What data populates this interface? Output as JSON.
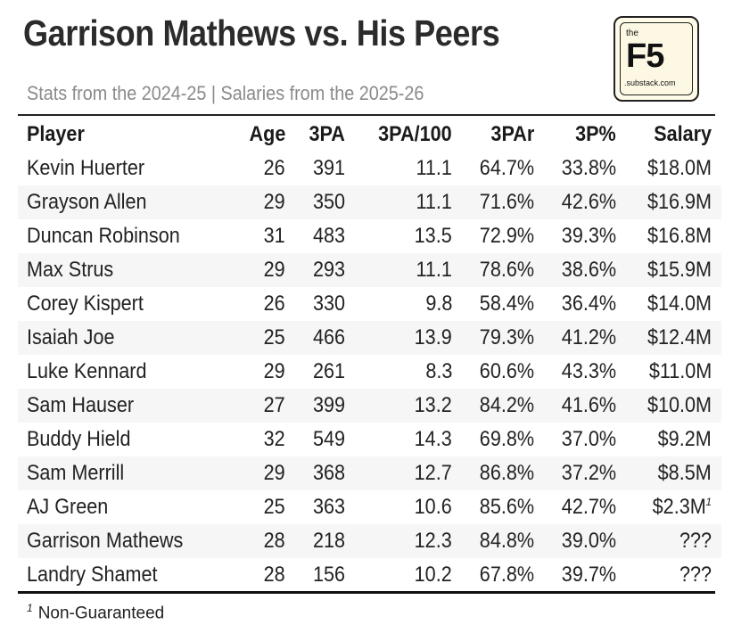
{
  "header": {
    "title": "Garrison Mathews vs. His Peers",
    "subtitle": "Stats from the 2024-25 | Salaries from the 2025-26"
  },
  "logo": {
    "the": "the",
    "name": "F5",
    "domain": ".substack.com"
  },
  "table": {
    "columns": [
      "Player",
      "Age",
      "3PA",
      "3PA/100",
      "3PAr",
      "3P%",
      "Salary"
    ],
    "rows": [
      {
        "player": "Kevin Huerter",
        "age": "26",
        "tpa": "391",
        "tpa100": "11.1",
        "tpar": "64.7%",
        "tpp": "33.8%",
        "salary": "$18.0M",
        "note": ""
      },
      {
        "player": "Grayson Allen",
        "age": "29",
        "tpa": "350",
        "tpa100": "11.1",
        "tpar": "71.6%",
        "tpp": "42.6%",
        "salary": "$16.9M",
        "note": ""
      },
      {
        "player": "Duncan Robinson",
        "age": "31",
        "tpa": "483",
        "tpa100": "13.5",
        "tpar": "72.9%",
        "tpp": "39.3%",
        "salary": "$16.8M",
        "note": ""
      },
      {
        "player": "Max Strus",
        "age": "29",
        "tpa": "293",
        "tpa100": "11.1",
        "tpar": "78.6%",
        "tpp": "38.6%",
        "salary": "$15.9M",
        "note": ""
      },
      {
        "player": "Corey Kispert",
        "age": "26",
        "tpa": "330",
        "tpa100": "9.8",
        "tpar": "58.4%",
        "tpp": "36.4%",
        "salary": "$14.0M",
        "note": ""
      },
      {
        "player": "Isaiah Joe",
        "age": "25",
        "tpa": "466",
        "tpa100": "13.9",
        "tpar": "79.3%",
        "tpp": "41.2%",
        "salary": "$12.4M",
        "note": ""
      },
      {
        "player": "Luke Kennard",
        "age": "29",
        "tpa": "261",
        "tpa100": "8.3",
        "tpar": "60.6%",
        "tpp": "43.3%",
        "salary": "$11.0M",
        "note": ""
      },
      {
        "player": "Sam Hauser",
        "age": "27",
        "tpa": "399",
        "tpa100": "13.2",
        "tpar": "84.2%",
        "tpp": "41.6%",
        "salary": "$10.0M",
        "note": ""
      },
      {
        "player": "Buddy Hield",
        "age": "32",
        "tpa": "549",
        "tpa100": "14.3",
        "tpar": "69.8%",
        "tpp": "37.0%",
        "salary": "$9.2M",
        "note": ""
      },
      {
        "player": "Sam Merrill",
        "age": "29",
        "tpa": "368",
        "tpa100": "12.7",
        "tpar": "86.8%",
        "tpp": "37.2%",
        "salary": "$8.5M",
        "note": ""
      },
      {
        "player": "AJ Green",
        "age": "25",
        "tpa": "363",
        "tpa100": "10.6",
        "tpar": "85.6%",
        "tpp": "42.7%",
        "salary": "$2.3M",
        "note": "1"
      },
      {
        "player": "Garrison Mathews",
        "age": "28",
        "tpa": "218",
        "tpa100": "12.3",
        "tpar": "84.8%",
        "tpp": "39.0%",
        "salary": "???",
        "note": ""
      },
      {
        "player": "Landry Shamet",
        "age": "28",
        "tpa": "156",
        "tpa100": "10.2",
        "tpar": "67.8%",
        "tpp": "39.7%",
        "salary": "???",
        "note": ""
      }
    ]
  },
  "footnote": {
    "marker": "1",
    "text": "Non-Guaranteed"
  }
}
